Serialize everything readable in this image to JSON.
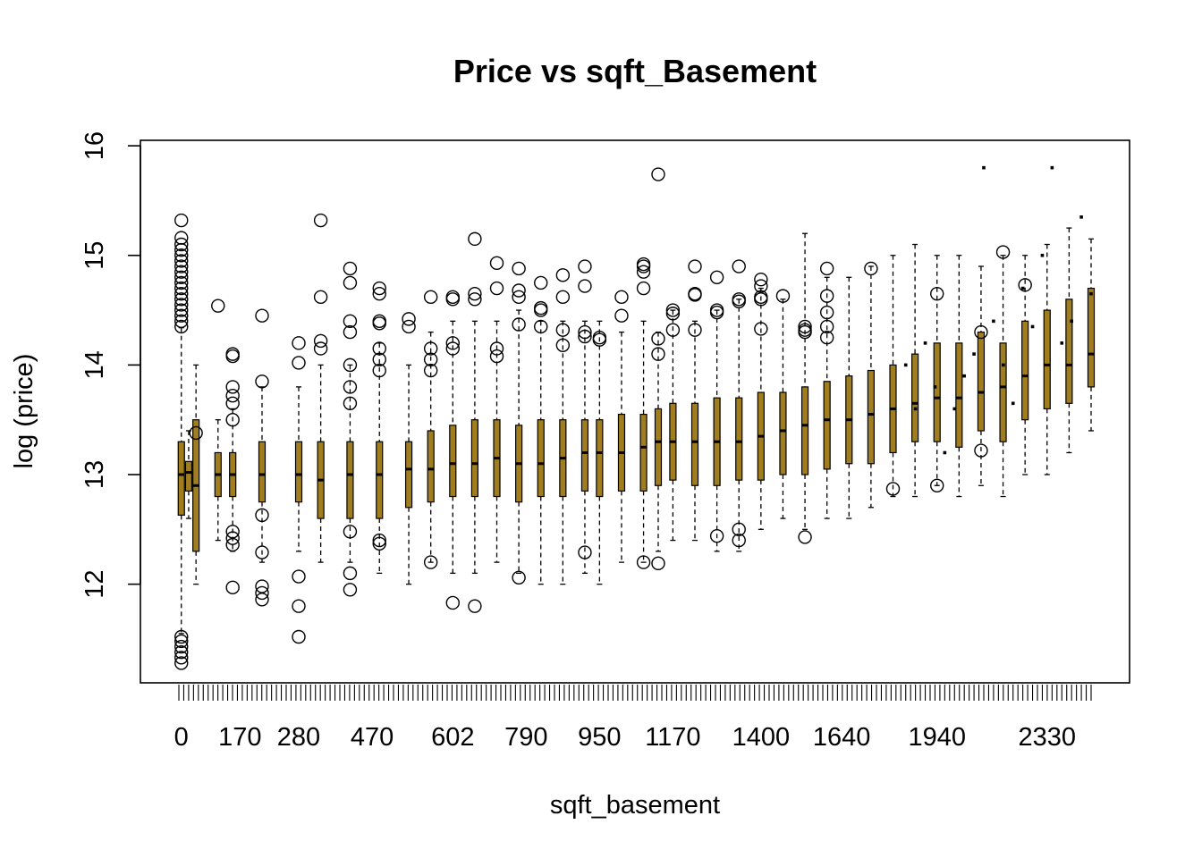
{
  "chart_data": {
    "type": "box",
    "title": "Price vs sqft_Basement",
    "xlabel": "sqft_basement",
    "ylabel": "log (price)",
    "ylim": [
      11.1,
      16.05
    ],
    "y_ticks": [
      12,
      13,
      14,
      15,
      16
    ],
    "x_tick_labels": [
      "0",
      "170",
      "280",
      "470",
      "602",
      "790",
      "950",
      "1170",
      "1400",
      "1640",
      "1940",
      "2330"
    ],
    "x_tick_positions": [
      1,
      9,
      17,
      27,
      38,
      48,
      58,
      68,
      80,
      91,
      104,
      119
    ],
    "category_count": 125,
    "box_fill": "#a07d1f",
    "boxes": [
      {
        "pos": 1,
        "min": 11.55,
        "q1": 12.63,
        "med": 13.0,
        "q3": 13.3,
        "max": 14.34,
        "outliers": [
          14.35,
          14.4,
          14.45,
          14.5,
          14.55,
          14.6,
          14.65,
          14.7,
          14.75,
          14.8,
          14.85,
          14.9,
          14.95,
          15.0,
          15.05,
          15.1,
          15.16,
          15.32,
          11.28,
          11.33,
          11.38,
          11.43,
          11.48,
          11.52
        ]
      },
      {
        "pos": 2,
        "min": 12.6,
        "q1": 12.85,
        "med": 13.02,
        "q3": 13.12,
        "max": 13.4,
        "outliers": []
      },
      {
        "pos": 3,
        "min": 12.0,
        "q1": 12.3,
        "med": 12.9,
        "q3": 13.5,
        "max": 14.0,
        "outliers": [
          13.38
        ]
      },
      {
        "pos": 6,
        "min": 12.4,
        "q1": 12.8,
        "med": 13.0,
        "q3": 13.2,
        "max": 13.5,
        "outliers": [
          14.54
        ]
      },
      {
        "pos": 8,
        "min": 12.3,
        "q1": 12.8,
        "med": 13.0,
        "q3": 13.2,
        "max": 13.6,
        "outliers": [
          14.08,
          14.1,
          13.8,
          13.72,
          13.65,
          13.5,
          12.48,
          12.42,
          12.36,
          11.97
        ]
      },
      {
        "pos": 12,
        "min": 12.2,
        "q1": 12.75,
        "med": 13.0,
        "q3": 13.3,
        "max": 13.8,
        "outliers": [
          14.45,
          13.85,
          12.63,
          12.29,
          11.98,
          11.92,
          11.86
        ]
      },
      {
        "pos": 17,
        "min": 12.3,
        "q1": 12.75,
        "med": 13.0,
        "q3": 13.3,
        "max": 13.8,
        "outliers": [
          14.2,
          14.02,
          12.07,
          11.8,
          11.52
        ]
      },
      {
        "pos": 20,
        "min": 12.2,
        "q1": 12.6,
        "med": 12.95,
        "q3": 13.3,
        "max": 14.0,
        "outliers": [
          15.32,
          14.15,
          14.22,
          14.62
        ]
      },
      {
        "pos": 24,
        "min": 12.2,
        "q1": 12.6,
        "med": 13.0,
        "q3": 13.3,
        "max": 14.0,
        "outliers": [
          14.88,
          14.75,
          14.4,
          14.3,
          14.0,
          13.8,
          13.65,
          12.48,
          12.1,
          11.95
        ]
      },
      {
        "pos": 28,
        "min": 12.1,
        "q1": 12.6,
        "med": 13.0,
        "q3": 13.3,
        "max": 14.2,
        "outliers": [
          14.7,
          14.65,
          14.4,
          14.38,
          14.15,
          14.05,
          13.95,
          12.4,
          12.37
        ]
      },
      {
        "pos": 32,
        "min": 12.0,
        "q1": 12.7,
        "med": 13.05,
        "q3": 13.3,
        "max": 14.0,
        "outliers": [
          14.42,
          14.35
        ]
      },
      {
        "pos": 35,
        "min": 12.2,
        "q1": 12.75,
        "med": 13.05,
        "q3": 13.4,
        "max": 14.3,
        "outliers": [
          14.62,
          14.15,
          14.05,
          13.95,
          12.2
        ]
      },
      {
        "pos": 38,
        "min": 12.1,
        "q1": 12.8,
        "med": 13.1,
        "q3": 13.45,
        "max": 14.4,
        "outliers": [
          14.62,
          14.6,
          14.2,
          14.15,
          11.83
        ]
      },
      {
        "pos": 41,
        "min": 12.1,
        "q1": 12.8,
        "med": 13.1,
        "q3": 13.5,
        "max": 14.4,
        "outliers": [
          15.15,
          14.65,
          14.6,
          11.8
        ]
      },
      {
        "pos": 44,
        "min": 12.2,
        "q1": 12.8,
        "med": 13.15,
        "q3": 13.5,
        "max": 14.4,
        "outliers": [
          14.93,
          14.7,
          14.15,
          14.08
        ]
      },
      {
        "pos": 47,
        "min": 12.1,
        "q1": 12.75,
        "med": 13.1,
        "q3": 13.45,
        "max": 14.5,
        "outliers": [
          14.88,
          14.68,
          14.62,
          14.37,
          12.06
        ]
      },
      {
        "pos": 50,
        "min": 12.0,
        "q1": 12.8,
        "med": 13.1,
        "q3": 13.5,
        "max": 14.4,
        "outliers": [
          14.75,
          14.52,
          14.5,
          14.35
        ]
      },
      {
        "pos": 53,
        "min": 12.0,
        "q1": 12.8,
        "med": 13.15,
        "q3": 13.5,
        "max": 14.4,
        "outliers": [
          14.82,
          14.62,
          14.32,
          14.18
        ]
      },
      {
        "pos": 56,
        "min": 12.1,
        "q1": 12.85,
        "med": 13.2,
        "q3": 13.5,
        "max": 14.4,
        "outliers": [
          14.9,
          14.72,
          14.3,
          14.26,
          12.29
        ]
      },
      {
        "pos": 58,
        "min": 12.0,
        "q1": 12.8,
        "med": 13.2,
        "q3": 13.5,
        "max": 14.4,
        "outliers": [
          14.25,
          14.23
        ]
      },
      {
        "pos": 61,
        "min": 12.2,
        "q1": 12.85,
        "med": 13.2,
        "q3": 13.55,
        "max": 14.3,
        "outliers": [
          14.62,
          14.45
        ]
      },
      {
        "pos": 64,
        "min": 12.2,
        "q1": 12.85,
        "med": 13.25,
        "q3": 13.55,
        "max": 14.4,
        "outliers": [
          14.92,
          14.9,
          14.85,
          14.7,
          12.2
        ]
      },
      {
        "pos": 66,
        "min": 12.3,
        "q1": 12.9,
        "med": 13.3,
        "q3": 13.6,
        "max": 14.3,
        "outliers": [
          15.74,
          14.24,
          14.1,
          12.19
        ]
      },
      {
        "pos": 68,
        "min": 12.4,
        "q1": 12.95,
        "med": 13.3,
        "q3": 13.65,
        "max": 14.5,
        "outliers": [
          14.5,
          14.47,
          14.32
        ]
      },
      {
        "pos": 71,
        "min": 12.4,
        "q1": 12.9,
        "med": 13.3,
        "q3": 13.65,
        "max": 14.4,
        "outliers": [
          14.9,
          14.65,
          14.64,
          14.32
        ]
      },
      {
        "pos": 74,
        "min": 12.3,
        "q1": 12.9,
        "med": 13.3,
        "q3": 13.7,
        "max": 14.5,
        "outliers": [
          14.8,
          14.5,
          14.48,
          12.44
        ]
      },
      {
        "pos": 77,
        "min": 12.3,
        "q1": 12.95,
        "med": 13.3,
        "q3": 13.7,
        "max": 14.6,
        "outliers": [
          14.9,
          14.6,
          14.58,
          12.5,
          12.4
        ]
      },
      {
        "pos": 80,
        "min": 12.5,
        "q1": 12.95,
        "med": 13.35,
        "q3": 13.75,
        "max": 14.7,
        "outliers": [
          14.78,
          14.72,
          14.62,
          14.6,
          14.33
        ]
      },
      {
        "pos": 83,
        "min": 12.6,
        "q1": 13.0,
        "med": 13.4,
        "q3": 13.75,
        "max": 14.6,
        "outliers": [
          14.63
        ]
      },
      {
        "pos": 86,
        "min": 12.5,
        "q1": 13.0,
        "med": 13.45,
        "q3": 13.8,
        "max": 15.2,
        "outliers": [
          14.35,
          14.32,
          14.3,
          12.43
        ]
      },
      {
        "pos": 89,
        "min": 12.6,
        "q1": 13.05,
        "med": 13.5,
        "q3": 13.85,
        "max": 14.8,
        "outliers": [
          14.88,
          14.63,
          14.48,
          14.35,
          14.25
        ]
      },
      {
        "pos": 92,
        "min": 12.6,
        "q1": 13.1,
        "med": 13.5,
        "q3": 13.9,
        "max": 14.8,
        "outliers": []
      },
      {
        "pos": 95,
        "min": 12.7,
        "q1": 13.1,
        "med": 13.55,
        "q3": 13.95,
        "max": 14.9,
        "outliers": [
          14.88
        ]
      },
      {
        "pos": 98,
        "min": 12.8,
        "q1": 13.2,
        "med": 13.6,
        "q3": 14.0,
        "max": 15.0,
        "outliers": [
          12.87
        ]
      },
      {
        "pos": 101,
        "min": 12.8,
        "q1": 13.3,
        "med": 13.65,
        "q3": 14.1,
        "max": 15.1,
        "outliers": []
      },
      {
        "pos": 104,
        "min": 12.9,
        "q1": 13.3,
        "med": 13.7,
        "q3": 14.2,
        "max": 15.0,
        "outliers": [
          14.65,
          12.9
        ]
      },
      {
        "pos": 107,
        "min": 12.8,
        "q1": 13.25,
        "med": 13.7,
        "q3": 14.2,
        "max": 15.0,
        "outliers": []
      },
      {
        "pos": 110,
        "min": 12.9,
        "q1": 13.4,
        "med": 13.75,
        "q3": 14.3,
        "max": 14.9,
        "outliers": [
          14.3,
          13.22
        ]
      },
      {
        "pos": 113,
        "min": 12.8,
        "q1": 13.3,
        "med": 13.8,
        "q3": 14.2,
        "max": 15.0,
        "outliers": [
          15.03
        ]
      },
      {
        "pos": 116,
        "min": 13.0,
        "q1": 13.5,
        "med": 13.9,
        "q3": 14.4,
        "max": 15.0,
        "outliers": [
          14.73
        ]
      },
      {
        "pos": 119,
        "min": 13.0,
        "q1": 13.6,
        "med": 14.0,
        "q3": 14.5,
        "max": 15.1,
        "outliers": []
      },
      {
        "pos": 122,
        "min": 13.2,
        "q1": 13.65,
        "med": 14.0,
        "q3": 14.6,
        "max": 15.25,
        "outliers": []
      },
      {
        "pos": 125,
        "min": 13.4,
        "q1": 13.8,
        "med": 14.1,
        "q3": 14.7,
        "max": 15.15,
        "outliers": []
      }
    ],
    "single_points": [
      {
        "pos": 150,
        "y": 14.0
      },
      {
        "pos": 152,
        "y": 13.6
      },
      {
        "pos": 154,
        "y": 14.2
      },
      {
        "pos": 156,
        "y": 13.8
      },
      {
        "pos": 158,
        "y": 13.2
      },
      {
        "pos": 160,
        "y": 13.6
      },
      {
        "pos": 162,
        "y": 13.9
      },
      {
        "pos": 164,
        "y": 14.1
      },
      {
        "pos": 166,
        "y": 15.8
      },
      {
        "pos": 168,
        "y": 14.4
      },
      {
        "pos": 170,
        "y": 14.0
      },
      {
        "pos": 172,
        "y": 13.65
      },
      {
        "pos": 174,
        "y": 14.7
      },
      {
        "pos": 176,
        "y": 14.35
      },
      {
        "pos": 178,
        "y": 15.0
      },
      {
        "pos": 180,
        "y": 15.8
      },
      {
        "pos": 182,
        "y": 14.2
      },
      {
        "pos": 184,
        "y": 14.4
      },
      {
        "pos": 186,
        "y": 15.35
      },
      {
        "pos": 188,
        "y": 14.65
      }
    ]
  }
}
